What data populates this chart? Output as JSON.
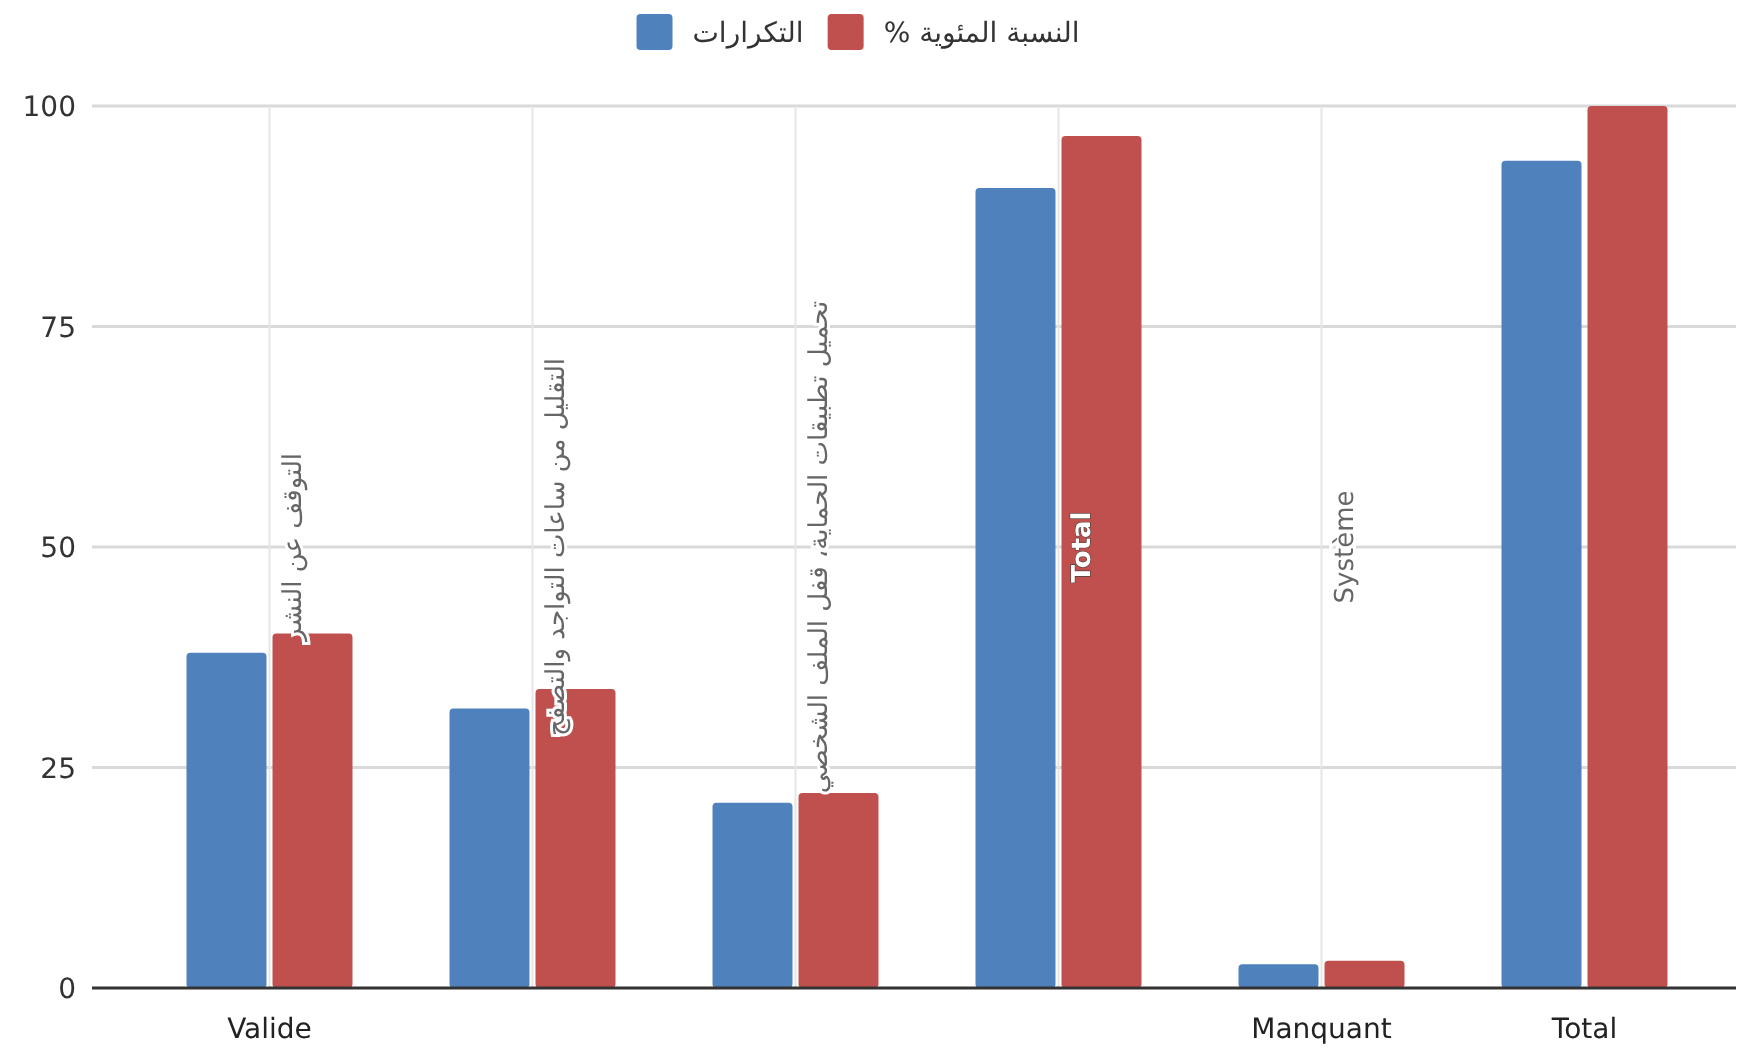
{
  "chart_data": {
    "type": "bar",
    "categories": [
      "التوقف عن النشر",
      "التقليل من ساعات التواجد والتصفح",
      "تحميل تطبيقات الحماية، قفل الملف الشخصي",
      "Total",
      "Système",
      null
    ],
    "series": [
      {
        "name": "التكرارات",
        "color": "#4f81bd",
        "values": [
          38,
          31.7,
          21,
          90.7,
          2.7,
          93.8
        ]
      },
      {
        "name": "النسبة المئوية %",
        "color": "#c0504d",
        "values": [
          40.2,
          33.9,
          22.1,
          96.6,
          3.1,
          100
        ]
      }
    ],
    "annotations": [
      "Valide",
      "Manquant",
      "Total"
    ],
    "ylim": [
      0,
      100
    ],
    "yticks": [
      0,
      25,
      50,
      75,
      100
    ],
    "grid": true,
    "legend": "top"
  }
}
